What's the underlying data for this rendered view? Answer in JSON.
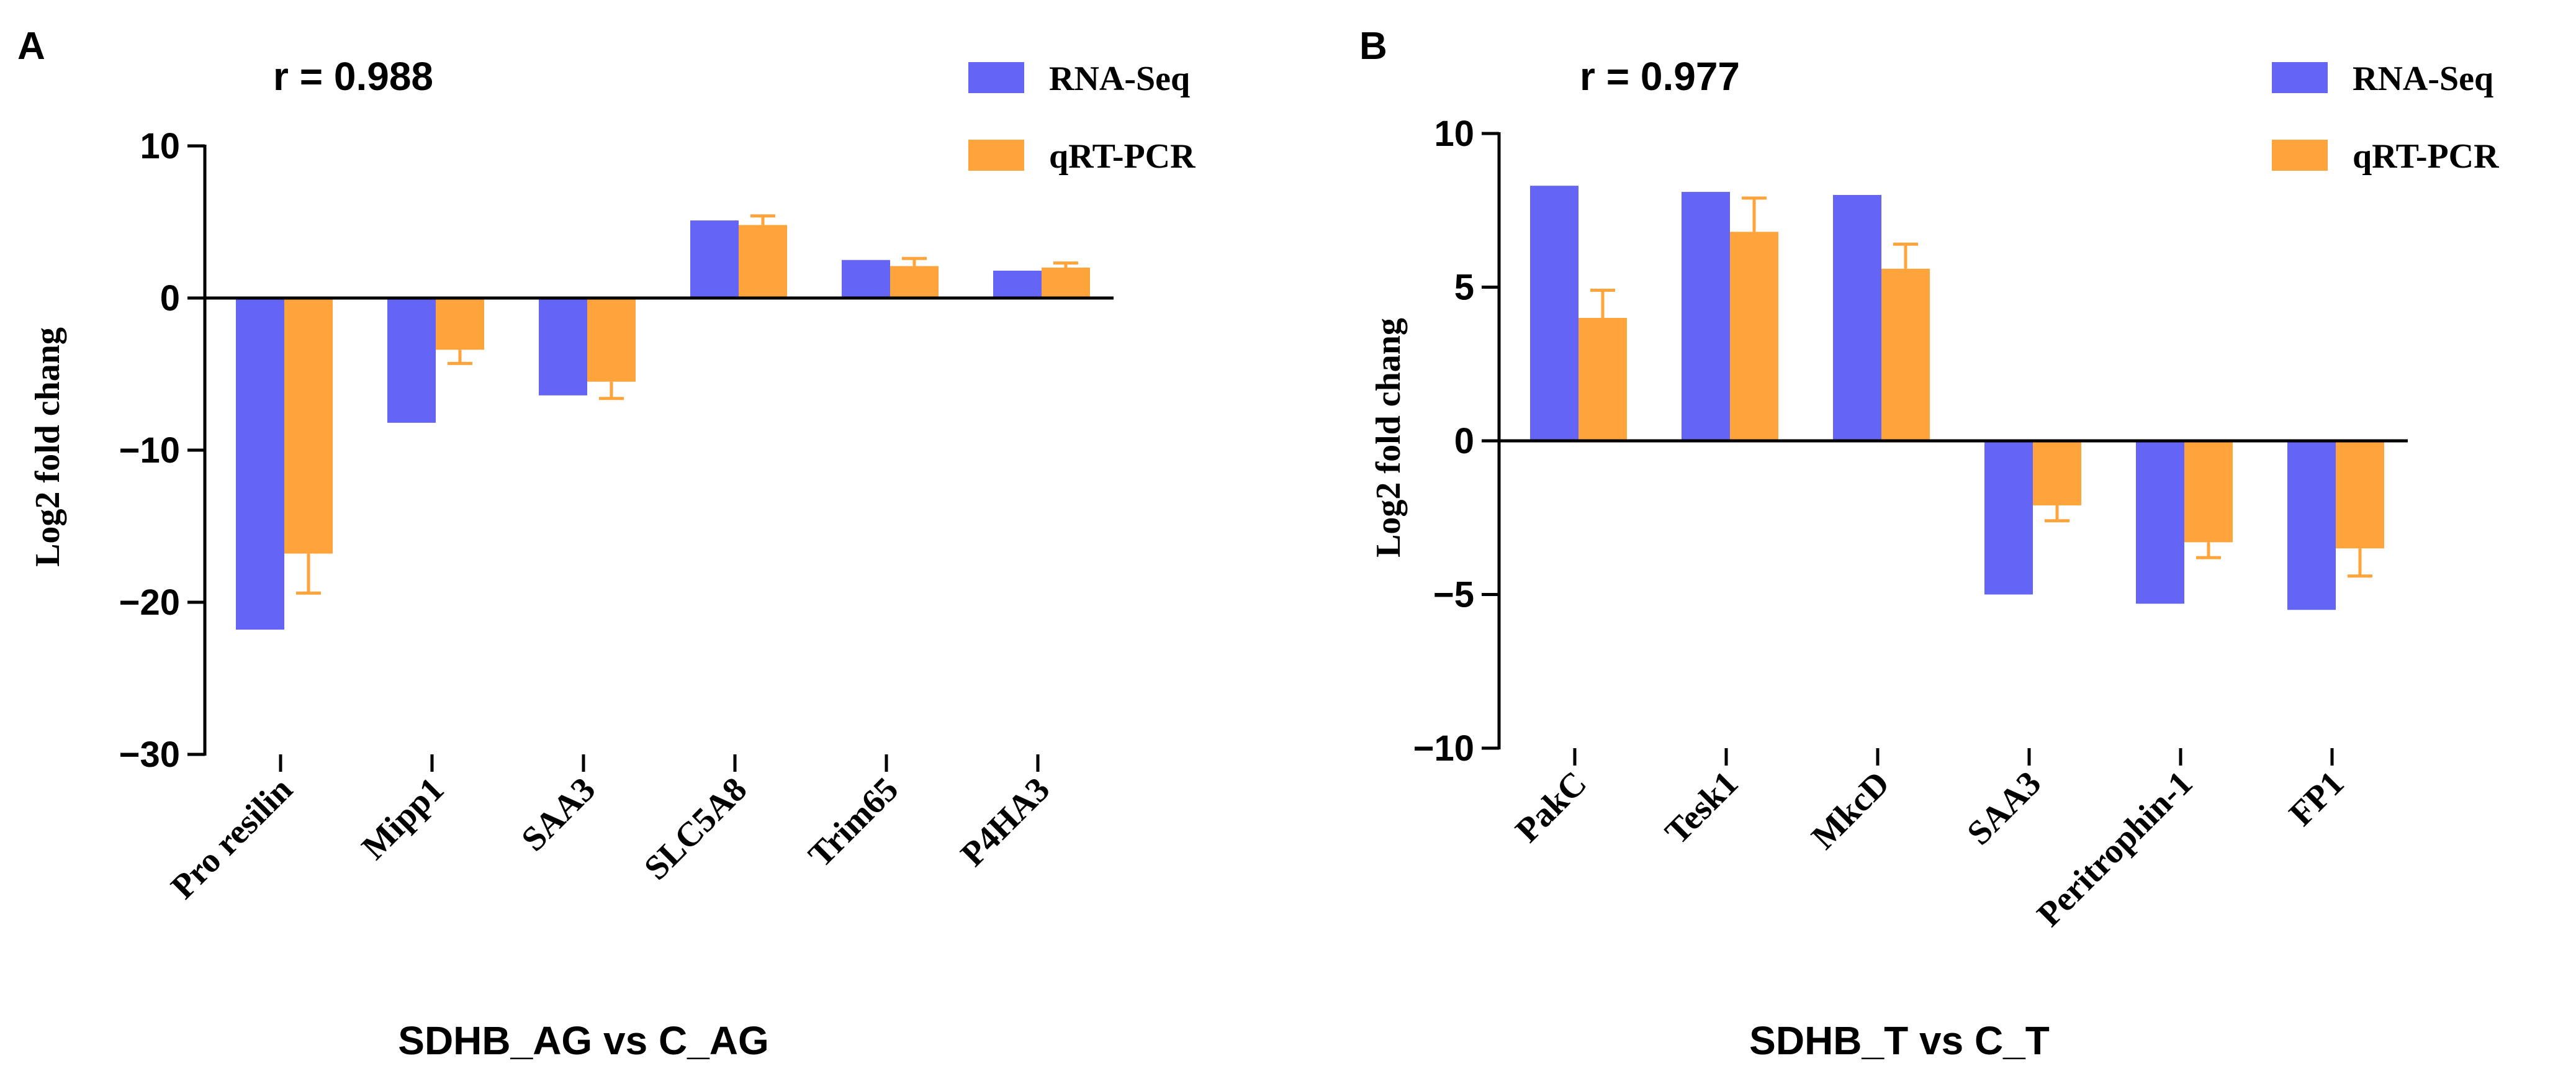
{
  "colors": {
    "rna": "#6464F5",
    "qpcr": "#FFA43A",
    "axis": "#000000"
  },
  "chart_data": [
    {
      "type": "bar",
      "panel_label": "A",
      "annotation": "r = 0.988",
      "title": "SDHB_AG vs C_AG",
      "xlabel": "SDHB_AG vs C_AG",
      "ylabel": "Log2 fold chang",
      "ylim": [
        -30,
        10
      ],
      "yticks": [
        10,
        0,
        -10,
        -20,
        -30
      ],
      "ytick_labels": [
        "10",
        "0",
        "−10",
        "−20",
        "−30"
      ],
      "categories": [
        "Pro resilin",
        "Mipp1",
        "SAA3",
        "SLC5A8",
        "Trim65",
        "P4HA3"
      ],
      "series": [
        {
          "name": "RNA-Seq",
          "values": [
            -21.8,
            -8.2,
            -6.4,
            5.1,
            2.5,
            1.8
          ],
          "errors": [
            0,
            0,
            0,
            0,
            0,
            0
          ]
        },
        {
          "name": "qRT-PCR",
          "values": [
            -16.8,
            -3.4,
            -5.5,
            4.8,
            2.1,
            2.0
          ],
          "errors": [
            2.6,
            0.9,
            1.1,
            0.6,
            0.5,
            0.3
          ]
        }
      ],
      "legend": [
        "RNA-Seq",
        "qRT-PCR"
      ],
      "legend_position": "top-right"
    },
    {
      "type": "bar",
      "panel_label": "B",
      "annotation": "r = 0.977",
      "title": "SDHB_T vs C_T",
      "xlabel": "SDHB_T vs C_T",
      "ylabel": "Log2 fold chang",
      "ylim": [
        -10,
        10
      ],
      "yticks": [
        10,
        5,
        0,
        -5,
        -10
      ],
      "ytick_labels": [
        "10",
        "5",
        "0",
        "−5",
        "−10"
      ],
      "categories": [
        "PakC",
        "Tesk1",
        "MkcD",
        "SAA3",
        "Peritrophin-1",
        "FP1"
      ],
      "series": [
        {
          "name": "RNA-Seq",
          "values": [
            8.3,
            8.1,
            8.0,
            -5.0,
            -5.3,
            -5.5
          ],
          "errors": [
            0,
            0,
            0,
            0,
            0,
            0
          ]
        },
        {
          "name": "qRT-PCR",
          "values": [
            4.0,
            6.8,
            5.6,
            -2.1,
            -3.3,
            -3.5
          ],
          "errors": [
            0.9,
            1.1,
            0.8,
            0.5,
            0.5,
            0.9
          ]
        }
      ],
      "legend": [
        "RNA-Seq",
        "qRT-PCR"
      ],
      "legend_position": "top-right"
    }
  ]
}
